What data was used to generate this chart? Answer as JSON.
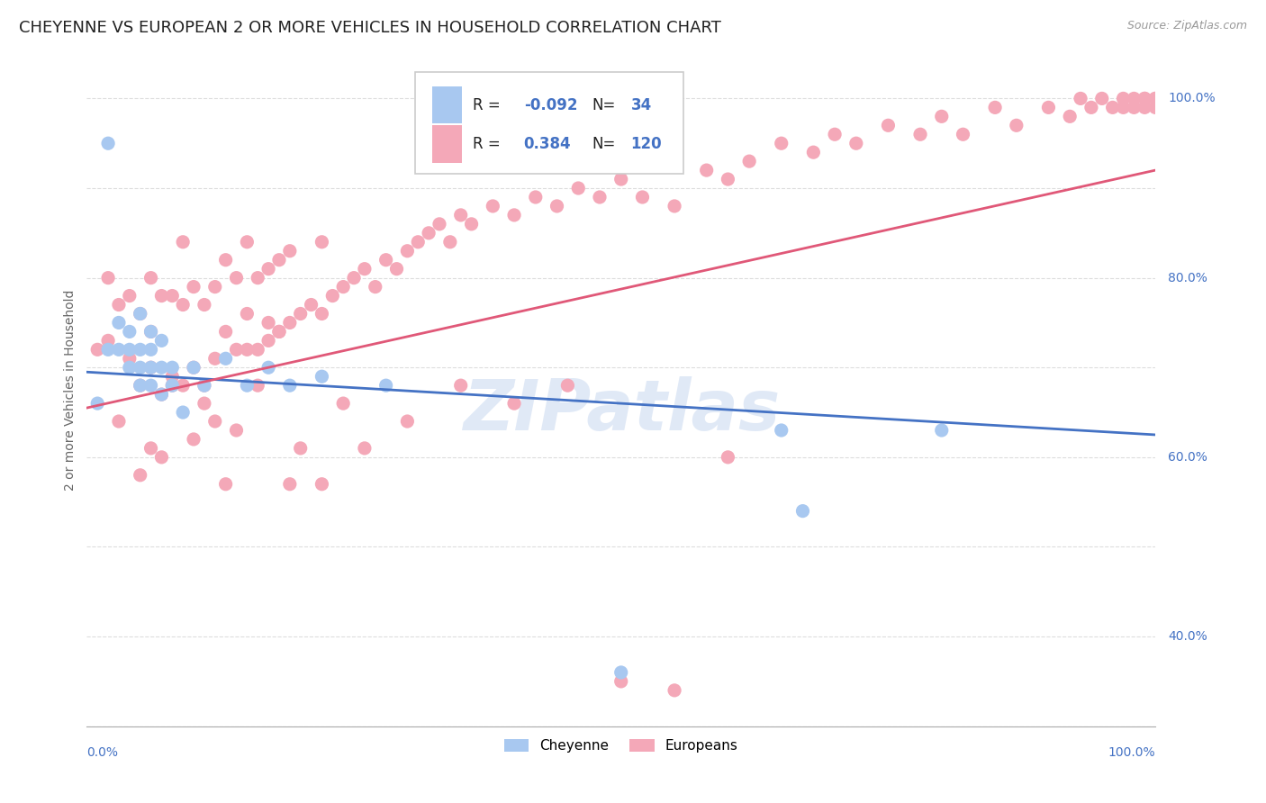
{
  "title": "CHEYENNE VS EUROPEAN 2 OR MORE VEHICLES IN HOUSEHOLD CORRELATION CHART",
  "source": "Source: ZipAtlas.com",
  "ylabel": "2 or more Vehicles in Household",
  "watermark": "ZIPatlas",
  "legend_r_cheyenne": "-0.092",
  "legend_n_cheyenne": "34",
  "legend_r_european": "0.384",
  "legend_n_european": "120",
  "cheyenne_color": "#a8c8f0",
  "european_color": "#f4a8b8",
  "cheyenne_line_color": "#4472c4",
  "european_line_color": "#e05878",
  "title_fontsize": 13,
  "bg_color": "#ffffff",
  "grid_color": "#cccccc",
  "xlim": [
    0.0,
    1.0
  ],
  "ylim": [
    0.3,
    1.05
  ],
  "cheyenne_x": [
    0.01,
    0.02,
    0.02,
    0.03,
    0.03,
    0.04,
    0.04,
    0.04,
    0.05,
    0.05,
    0.05,
    0.05,
    0.06,
    0.06,
    0.06,
    0.06,
    0.07,
    0.07,
    0.07,
    0.08,
    0.08,
    0.09,
    0.1,
    0.11,
    0.13,
    0.15,
    0.17,
    0.19,
    0.22,
    0.28,
    0.5,
    0.65,
    0.67,
    0.8
  ],
  "cheyenne_y": [
    0.66,
    0.95,
    0.72,
    0.72,
    0.75,
    0.7,
    0.72,
    0.74,
    0.68,
    0.7,
    0.72,
    0.76,
    0.68,
    0.7,
    0.72,
    0.74,
    0.67,
    0.7,
    0.73,
    0.68,
    0.7,
    0.65,
    0.7,
    0.68,
    0.71,
    0.68,
    0.7,
    0.68,
    0.69,
    0.68,
    0.36,
    0.63,
    0.54,
    0.63
  ],
  "european_x": [
    0.01,
    0.02,
    0.02,
    0.03,
    0.04,
    0.04,
    0.05,
    0.05,
    0.06,
    0.06,
    0.06,
    0.07,
    0.07,
    0.08,
    0.08,
    0.09,
    0.09,
    0.09,
    0.1,
    0.1,
    0.11,
    0.11,
    0.12,
    0.12,
    0.13,
    0.13,
    0.14,
    0.14,
    0.15,
    0.15,
    0.16,
    0.16,
    0.17,
    0.17,
    0.18,
    0.18,
    0.19,
    0.19,
    0.2,
    0.21,
    0.22,
    0.22,
    0.23,
    0.24,
    0.25,
    0.26,
    0.27,
    0.28,
    0.29,
    0.3,
    0.31,
    0.32,
    0.33,
    0.34,
    0.35,
    0.36,
    0.38,
    0.4,
    0.42,
    0.44,
    0.46,
    0.48,
    0.5,
    0.52,
    0.55,
    0.58,
    0.6,
    0.62,
    0.65,
    0.68,
    0.7,
    0.72,
    0.75,
    0.78,
    0.8,
    0.82,
    0.85,
    0.87,
    0.9,
    0.92,
    0.93,
    0.94,
    0.95,
    0.96,
    0.97,
    0.97,
    0.98,
    0.98,
    0.99,
    0.99,
    0.99,
    1.0,
    1.0,
    1.0,
    0.03,
    0.05,
    0.06,
    0.07,
    0.08,
    0.1,
    0.11,
    0.12,
    0.13,
    0.14,
    0.15,
    0.16,
    0.17,
    0.18,
    0.19,
    0.2,
    0.22,
    0.24,
    0.26,
    0.3,
    0.35,
    0.4,
    0.45,
    0.5,
    0.55,
    0.6
  ],
  "european_y": [
    0.72,
    0.73,
    0.8,
    0.77,
    0.71,
    0.78,
    0.68,
    0.76,
    0.7,
    0.74,
    0.8,
    0.67,
    0.78,
    0.69,
    0.78,
    0.68,
    0.77,
    0.84,
    0.7,
    0.79,
    0.68,
    0.77,
    0.71,
    0.79,
    0.74,
    0.82,
    0.72,
    0.8,
    0.76,
    0.84,
    0.72,
    0.8,
    0.73,
    0.81,
    0.74,
    0.82,
    0.75,
    0.83,
    0.76,
    0.77,
    0.76,
    0.84,
    0.78,
    0.79,
    0.8,
    0.81,
    0.79,
    0.82,
    0.81,
    0.83,
    0.84,
    0.85,
    0.86,
    0.84,
    0.87,
    0.86,
    0.88,
    0.87,
    0.89,
    0.88,
    0.9,
    0.89,
    0.91,
    0.89,
    0.88,
    0.92,
    0.91,
    0.93,
    0.95,
    0.94,
    0.96,
    0.95,
    0.97,
    0.96,
    0.98,
    0.96,
    0.99,
    0.97,
    0.99,
    0.98,
    1.0,
    0.99,
    1.0,
    0.99,
    1.0,
    0.99,
    1.0,
    0.99,
    1.0,
    0.99,
    1.0,
    1.0,
    0.99,
    1.0,
    0.64,
    0.58,
    0.61,
    0.6,
    0.68,
    0.62,
    0.66,
    0.64,
    0.57,
    0.63,
    0.72,
    0.68,
    0.75,
    0.74,
    0.57,
    0.61,
    0.57,
    0.66,
    0.61,
    0.64,
    0.68,
    0.66,
    0.68,
    0.35,
    0.34,
    0.6
  ]
}
